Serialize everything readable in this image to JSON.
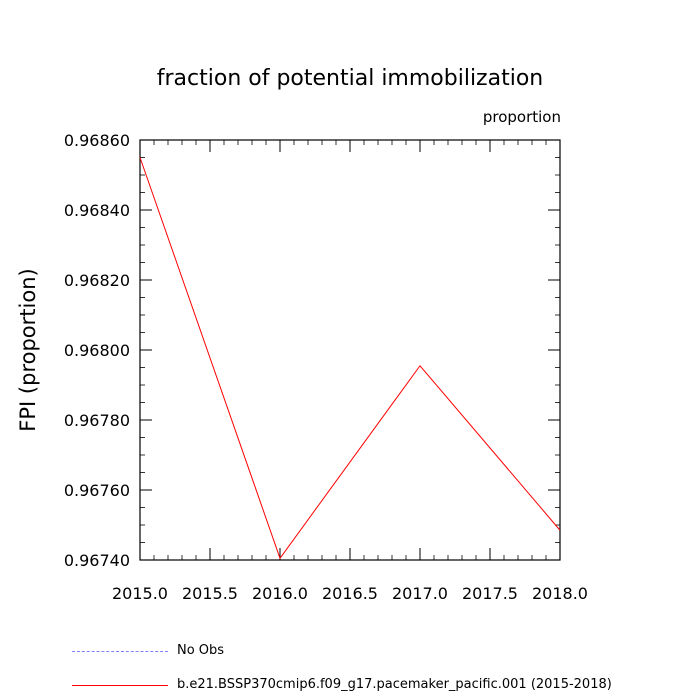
{
  "chart_data": {
    "type": "line",
    "title": "fraction of potential immobilization",
    "units_label": "proportion",
    "xlabel": "",
    "ylabel": "FPI  (proportion)",
    "xlim": [
      2015.0,
      2018.0
    ],
    "ylim": [
      0.9674,
      0.9686
    ],
    "x_ticks": [
      "2015.0",
      "2015.5",
      "2016.0",
      "2016.5",
      "2017.0",
      "2017.5",
      "2018.0"
    ],
    "y_ticks": [
      "0.96740",
      "0.96760",
      "0.96780",
      "0.96800",
      "0.96820",
      "0.96840",
      "0.96860"
    ],
    "grid": false,
    "legend_position": "bottom",
    "series": [
      {
        "name": "b.e21.BSSP370cmip6.f09_g17.pacemaker_pacific.001 (2015-2018)",
        "color": "#ff0000",
        "style": "solid",
        "x": [
          2015.0,
          2016.0,
          2017.0,
          2018.0
        ],
        "y": [
          0.96855,
          0.967405,
          0.967955,
          0.967485
        ]
      }
    ],
    "legend": [
      {
        "label": "No Obs",
        "color": "#8080ff",
        "style": "dashed"
      },
      {
        "label": "b.e21.BSSP370cmip6.f09_g17.pacemaker_pacific.001 (2015-2018)",
        "color": "#ff0000",
        "style": "solid"
      }
    ]
  }
}
